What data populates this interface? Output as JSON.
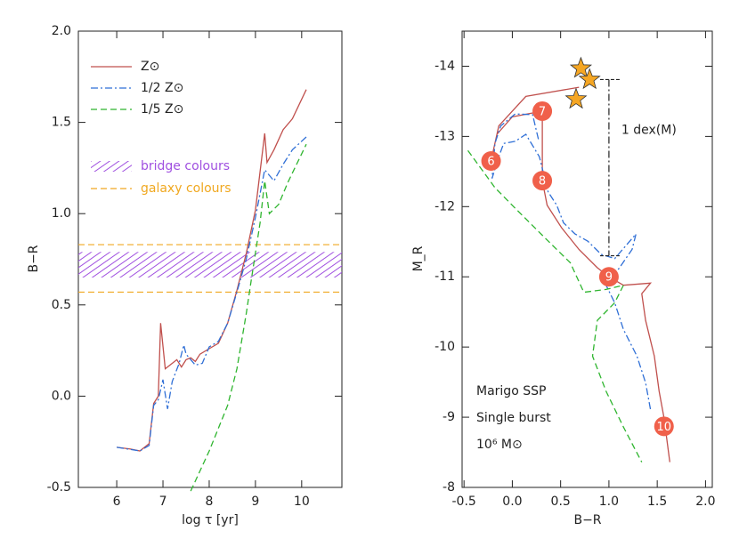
{
  "chart_data": [
    {
      "type": "line",
      "xlabel": "log τ [yr]",
      "ylabel": "B−R",
      "xlim": [
        5.17,
        10.87
      ],
      "ylim": [
        -0.5,
        2.0
      ],
      "xticks": [
        6,
        7,
        8,
        9,
        10
      ],
      "yticks": [
        -0.5,
        {
          "value": 0,
          "label": "0.0"
        },
        0.5,
        {
          "value": 1,
          "label": "1.0"
        },
        1.5,
        {
          "value": 2,
          "label": "2.0"
        }
      ],
      "series": [
        {
          "name": "Z⊙",
          "color": "#c0504d",
          "dash": "solid",
          "x": [
            6.0,
            6.3,
            6.5,
            6.7,
            6.8,
            6.9,
            6.95,
            7.05,
            7.2,
            7.3,
            7.4,
            7.5,
            7.6,
            7.7,
            7.8,
            8.0,
            8.2,
            8.4,
            8.6,
            8.8,
            9.0,
            9.2,
            9.25,
            9.4,
            9.6,
            9.8,
            10.1
          ],
          "values": [
            -0.28,
            -0.29,
            -0.3,
            -0.26,
            -0.04,
            0.0,
            0.4,
            0.15,
            0.18,
            0.2,
            0.16,
            0.2,
            0.21,
            0.19,
            0.23,
            0.26,
            0.29,
            0.4,
            0.58,
            0.78,
            1.02,
            1.44,
            1.28,
            1.35,
            1.46,
            1.52,
            1.68
          ]
        },
        {
          "name": "1/2 Z⊙",
          "color": "#2f6fd6",
          "dash": "dashdot",
          "x": [
            6.0,
            6.5,
            6.7,
            6.8,
            6.9,
            7.0,
            7.1,
            7.2,
            7.35,
            7.45,
            7.5,
            7.7,
            7.85,
            8.0,
            8.2,
            8.4,
            8.6,
            8.8,
            9.0,
            9.2,
            9.4,
            9.6,
            9.8,
            10.1
          ],
          "values": [
            -0.28,
            -0.3,
            -0.27,
            -0.05,
            -0.02,
            0.09,
            -0.07,
            0.08,
            0.18,
            0.28,
            0.23,
            0.17,
            0.18,
            0.27,
            0.3,
            0.4,
            0.57,
            0.75,
            0.98,
            1.24,
            1.18,
            1.27,
            1.35,
            1.42
          ]
        },
        {
          "name": "1/5 Z⊙",
          "color": "#2fb52f",
          "dash": "dashed",
          "x": [
            7.6,
            8.0,
            8.4,
            8.6,
            8.8,
            8.9,
            9.1,
            9.2,
            9.3,
            9.5,
            9.7,
            10.1
          ],
          "values": [
            -0.52,
            -0.3,
            -0.05,
            0.15,
            0.45,
            0.62,
            0.95,
            1.18,
            1.0,
            1.05,
            1.17,
            1.38
          ]
        }
      ],
      "bands": [
        {
          "name": "bridge colours",
          "color": "#a050e0",
          "style": "hatch",
          "range": [
            0.65,
            0.79
          ]
        },
        {
          "name": "galaxy colours",
          "color": "#f0a820",
          "style": "dashed",
          "range": [
            0.57,
            0.83
          ]
        }
      ]
    },
    {
      "type": "line",
      "xlabel": "B−R",
      "ylabel": "M_R",
      "xlim": [
        -0.52,
        2.07
      ],
      "ylim": [
        -8,
        -14.5
      ],
      "xticks": [
        -0.5,
        {
          "value": 0,
          "label": "0.0"
        },
        0.5,
        {
          "value": 1,
          "label": "1.0"
        },
        1.5,
        {
          "value": 2,
          "label": "2.0"
        }
      ],
      "yticks": [
        -14,
        -13,
        -12,
        -11,
        -10,
        -9,
        -8
      ],
      "series": [
        {
          "color": "#c0504d",
          "dash": "solid",
          "x": [
            0.69,
            0.14,
            -0.14,
            -0.22,
            -0.16,
            0.0,
            0.23,
            0.31,
            0.31,
            0.36,
            0.51,
            0.69,
            0.88,
            1.0,
            1.15,
            1.43,
            1.34,
            1.38,
            1.47,
            1.52,
            1.57,
            1.63
          ],
          "values": [
            -13.7,
            -13.57,
            -13.15,
            -12.65,
            -13.03,
            -13.28,
            -13.34,
            -13.36,
            -12.37,
            -12.02,
            -11.7,
            -11.39,
            -11.13,
            -11.0,
            -10.88,
            -10.91,
            -10.76,
            -10.38,
            -9.87,
            -9.37,
            -8.99,
            -8.36
          ]
        },
        {
          "color": "#2f6fd6",
          "dash": "dashdot",
          "x": [
            0.27,
            0.21,
            0.03,
            -0.12,
            -0.18,
            -0.21,
            -0.14,
            -0.09,
            0.03,
            0.14,
            0.28,
            0.37,
            0.46,
            0.53,
            0.65,
            0.78,
            0.92,
            1.06,
            1.28,
            1.24,
            1.11,
            0.97,
            1.06,
            1.15,
            1.29,
            1.38,
            1.43
          ],
          "values": [
            -12.96,
            -13.31,
            -13.32,
            -13.15,
            -12.9,
            -12.4,
            -12.71,
            -12.9,
            -12.93,
            -13.03,
            -12.71,
            -12.21,
            -12.02,
            -11.77,
            -11.61,
            -11.51,
            -11.32,
            -11.26,
            -11.61,
            -11.39,
            -11.13,
            -10.88,
            -10.63,
            -10.25,
            -9.87,
            -9.49,
            -9.11
          ]
        },
        {
          "color": "#2fb52f",
          "dash": "dashed",
          "x": [
            -0.46,
            -0.18,
            0.05,
            0.32,
            0.6,
            0.74,
            0.97,
            1.15,
            1.06,
            0.88,
            0.83,
            0.97,
            1.15,
            1.34
          ],
          "values": [
            -12.8,
            -12.27,
            -11.95,
            -11.58,
            -11.2,
            -10.78,
            -10.82,
            -10.88,
            -10.63,
            -10.38,
            -9.87,
            -9.37,
            -8.86,
            -8.36
          ]
        }
      ],
      "markers": [
        {
          "label": "6",
          "x": -0.22,
          "y": -12.65
        },
        {
          "label": "7",
          "x": 0.31,
          "y": -13.36
        },
        {
          "label": "8",
          "x": 0.31,
          "y": -12.37
        },
        {
          "label": "9",
          "x": 1.0,
          "y": -11.0
        },
        {
          "label": "10",
          "x": 1.57,
          "y": -8.87
        }
      ],
      "stars": {
        "color": "#f5a623",
        "x": [
          0.71,
          0.8,
          0.66
        ],
        "y": [
          -13.97,
          -13.81,
          -13.53
        ]
      },
      "annotation": {
        "label": "1 dex(M)",
        "x": 1.0,
        "y": [
          -13.81,
          -11.3
        ]
      },
      "texts": [
        "Marigo SSP",
        "Single burst",
        "10⁶ M⊙"
      ]
    }
  ]
}
